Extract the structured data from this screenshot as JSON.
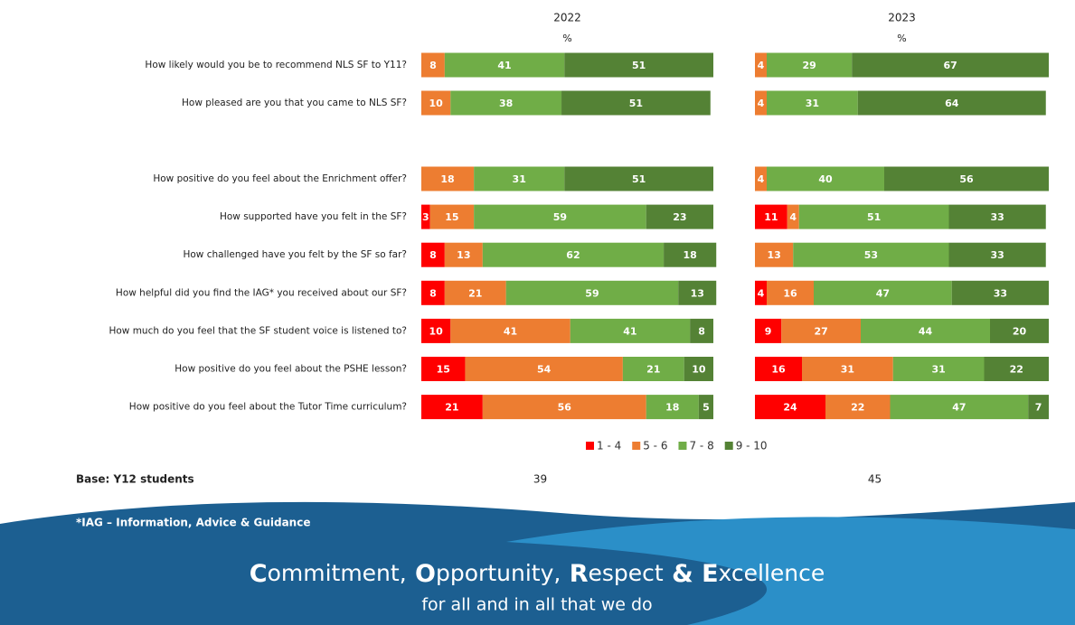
{
  "chart_data": {
    "type": "bar",
    "stacked": true,
    "orientation": "horizontal",
    "xlim": [
      0,
      100
    ],
    "categories": [
      "How likely would you be to recommend NLS SF to Y11?",
      "How pleased are you that you came to NLS SF?",
      "How positive do you feel about the Enrichment offer?",
      "How supported have you felt in the SF?",
      "How challenged have you felt by the SF so far?",
      "How helpful did you find the IAG* you received about our SF?",
      "How much do you feel that the SF student voice is listened to?",
      "How positive do you feel about the PSHE lesson?",
      "How positive do you feel about the Tutor Time curriculum?"
    ],
    "series": [
      {
        "name": "1 - 4",
        "color": "#ff0000"
      },
      {
        "name": "5 - 6",
        "color": "#ed7d31"
      },
      {
        "name": "7 - 8",
        "color": "#70ad47"
      },
      {
        "name": "9 - 10",
        "color": "#548235"
      }
    ],
    "panels": [
      {
        "title": "2022",
        "subtitle": "%",
        "base": 39,
        "values": [
          [
            null,
            null,
            null,
            3,
            8,
            8,
            10,
            15,
            21
          ],
          [
            8,
            10,
            18,
            15,
            13,
            21,
            41,
            54,
            56
          ],
          [
            41,
            38,
            31,
            59,
            62,
            59,
            41,
            21,
            18
          ],
          [
            51,
            51,
            51,
            23,
            18,
            13,
            8,
            10,
            5
          ]
        ]
      },
      {
        "title": "2023",
        "subtitle": "%",
        "base": 45,
        "values": [
          [
            null,
            null,
            null,
            11,
            null,
            4,
            9,
            16,
            24
          ],
          [
            4,
            4,
            4,
            4,
            13,
            16,
            27,
            31,
            22
          ],
          [
            29,
            31,
            40,
            51,
            53,
            47,
            44,
            31,
            47
          ],
          [
            67,
            64,
            56,
            33,
            33,
            33,
            20,
            22,
            7
          ]
        ]
      }
    ],
    "base_label": "Base: Y12 students"
  },
  "footer": {
    "footnote": "*IAG – Information, Advice & Guidance",
    "slogan": "Commitment, Opportunity, Respect & Excellence",
    "tagline": "for all and in all that we do"
  }
}
